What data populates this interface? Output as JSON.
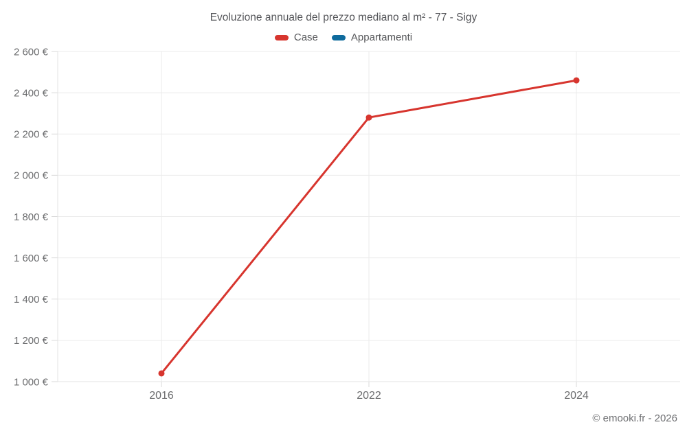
{
  "header": {
    "title": "Evoluzione annuale del prezzo mediano al m² - 77 - Sigy"
  },
  "legend": {
    "items": [
      {
        "label": "Case",
        "color": "#d7352e"
      },
      {
        "label": "Appartamenti",
        "color": "#0f6b9d"
      }
    ]
  },
  "footer": {
    "credit": "© emooki.fr - 2026"
  },
  "colors": {
    "grid": "#ebebeb",
    "axis": "#e3e3e3",
    "tick": "#d9d9d9",
    "tick_text": "#6b6c6e",
    "title_text": "#55565a"
  },
  "chart_data": {
    "type": "line",
    "title": "Evoluzione annuale del prezzo mediano al m² - 77 - Sigy",
    "categories": [
      "2016",
      "2022",
      "2024"
    ],
    "series": [
      {
        "name": "Case",
        "color": "#d7352e",
        "values": [
          1040,
          2280,
          2460
        ]
      },
      {
        "name": "Appartamenti",
        "color": "#0f6b9d",
        "values": []
      }
    ],
    "xlabel": "",
    "ylabel": "",
    "ylim": [
      1000,
      2600
    ],
    "y_tick_step": 200,
    "y_tick_labels": [
      "1 000 €",
      "1 200 €",
      "1 400 €",
      "1 600 €",
      "1 800 €",
      "2 000 €",
      "2 200 €",
      "2 400 €",
      "2 600 €"
    ],
    "currency_suffix": "€",
    "grid": true,
    "legend_position": "top"
  }
}
